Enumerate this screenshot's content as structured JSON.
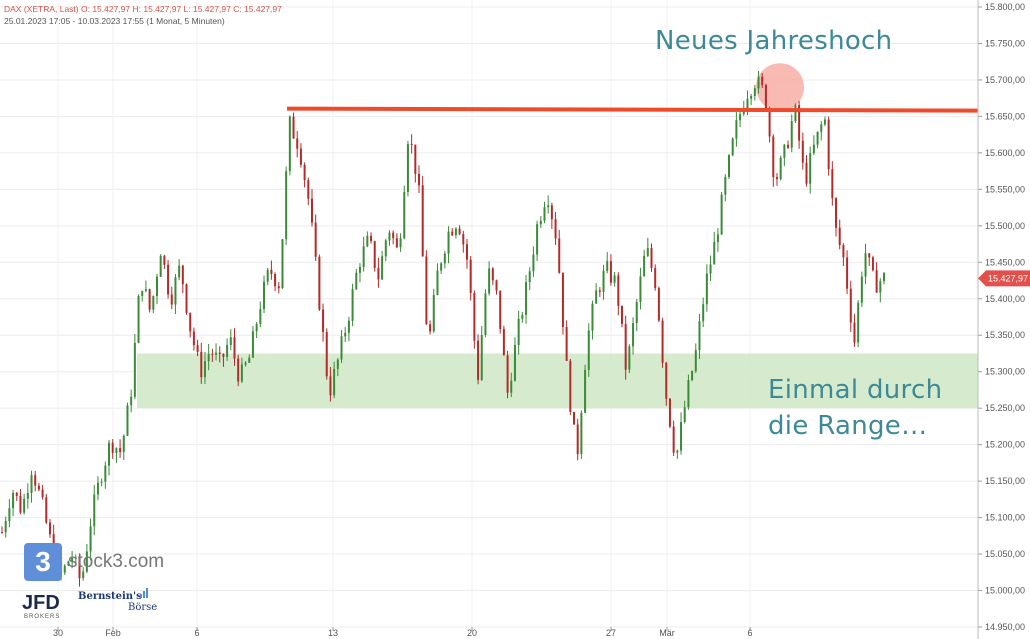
{
  "header": {
    "line1": "DAX (XETRA, Last)  O: 15.427,97  H: 15.427,97  L: 15.427,97  C: 15.427,97",
    "line2": "25.01.2023 17:05 - 10.03.2023 17:55  (1 Monat, 5 Minuten)"
  },
  "annotations": {
    "top": "Neues Jahreshoch",
    "bottom_line1": "Einmal durch",
    "bottom_line2": "die Range…"
  },
  "logos": {
    "stock3_mark": "3",
    "stock3_text": "stock3.com",
    "jfd": "JFD",
    "jfd_sub": "BROKERS",
    "bernstein": "Bernstein's",
    "borse": "Börse"
  },
  "colors": {
    "candle_up": "#3a8a3a",
    "candle_down": "#b32a2a",
    "resistance": "#f04a2c",
    "range_band": "#cfe8c4",
    "last_price": "#e2504b",
    "annotation": "#3d8a96"
  },
  "chart_data": {
    "type": "candlestick",
    "instrument": "DAX (XETRA, Last)",
    "interval": "5 Minuten",
    "ylim": [
      14950,
      15800
    ],
    "y_ticks": [
      "14.950,00",
      "15.000,00",
      "15.050,00",
      "15.100,00",
      "15.150,00",
      "15.200,00",
      "15.250,00",
      "15.300,00",
      "15.350,00",
      "15.400,00",
      "15.450,00",
      "15.500,00",
      "15.550,00",
      "15.600,00",
      "15.650,00",
      "15.700,00",
      "15.750,00",
      "15.800,00"
    ],
    "x_ticks": [
      "30",
      "Feb",
      "6",
      "13",
      "20",
      "27",
      "Mär",
      "6"
    ],
    "last_price": 15427.97,
    "last_price_label": "15.427,97",
    "resistance_level": 15658,
    "range_band": [
      15250,
      15325
    ],
    "price_path": [
      [
        0,
        15080
      ],
      [
        1,
        15140
      ],
      [
        2,
        15110
      ],
      [
        3,
        15170
      ],
      [
        4,
        15120
      ],
      [
        5,
        15060
      ],
      [
        6,
        15020
      ],
      [
        7,
        15050
      ],
      [
        8,
        15010
      ],
      [
        9,
        15100
      ],
      [
        10,
        15160
      ],
      [
        11,
        15205
      ],
      [
        12,
        15190
      ],
      [
        13,
        15270
      ],
      [
        14,
        15430
      ],
      [
        15,
        15380
      ],
      [
        16,
        15470
      ],
      [
        17,
        15400
      ],
      [
        18,
        15445
      ],
      [
        19,
        15360
      ],
      [
        20,
        15300
      ],
      [
        21,
        15330
      ],
      [
        22,
        15310
      ],
      [
        23,
        15345
      ],
      [
        24,
        15290
      ],
      [
        25,
        15320
      ],
      [
        26,
        15390
      ],
      [
        27,
        15440
      ],
      [
        28,
        15420
      ],
      [
        29,
        15640
      ],
      [
        30,
        15610
      ],
      [
        31,
        15530
      ],
      [
        32,
        15400
      ],
      [
        33,
        15270
      ],
      [
        34,
        15320
      ],
      [
        35,
        15380
      ],
      [
        36,
        15450
      ],
      [
        37,
        15480
      ],
      [
        38,
        15430
      ],
      [
        39,
        15500
      ],
      [
        40,
        15460
      ],
      [
        41,
        15630
      ],
      [
        42,
        15560
      ],
      [
        43,
        15330
      ],
      [
        44,
        15440
      ],
      [
        45,
        15490
      ],
      [
        46,
        15510
      ],
      [
        47,
        15450
      ],
      [
        48,
        15290
      ],
      [
        49,
        15440
      ],
      [
        50,
        15400
      ],
      [
        51,
        15270
      ],
      [
        52,
        15350
      ],
      [
        53,
        15420
      ],
      [
        54,
        15500
      ],
      [
        55,
        15550
      ],
      [
        56,
        15480
      ],
      [
        57,
        15300
      ],
      [
        58,
        15180
      ],
      [
        59,
        15340
      ],
      [
        60,
        15410
      ],
      [
        61,
        15440
      ],
      [
        62,
        15420
      ],
      [
        63,
        15300
      ],
      [
        64,
        15390
      ],
      [
        65,
        15470
      ],
      [
        66,
        15420
      ],
      [
        67,
        15270
      ],
      [
        68,
        15180
      ],
      [
        69,
        15260
      ],
      [
        70,
        15325
      ],
      [
        71,
        15420
      ],
      [
        72,
        15480
      ],
      [
        73,
        15560
      ],
      [
        74,
        15630
      ],
      [
        75,
        15680
      ],
      [
        76,
        15700
      ],
      [
        77,
        15680
      ],
      [
        78,
        15560
      ],
      [
        79,
        15600
      ],
      [
        80,
        15660
      ],
      [
        81,
        15560
      ],
      [
        82,
        15610
      ],
      [
        83,
        15650
      ],
      [
        84,
        15500
      ],
      [
        85,
        15450
      ],
      [
        86,
        15340
      ],
      [
        87,
        15470
      ],
      [
        88,
        15420
      ],
      [
        89,
        15428
      ]
    ]
  }
}
